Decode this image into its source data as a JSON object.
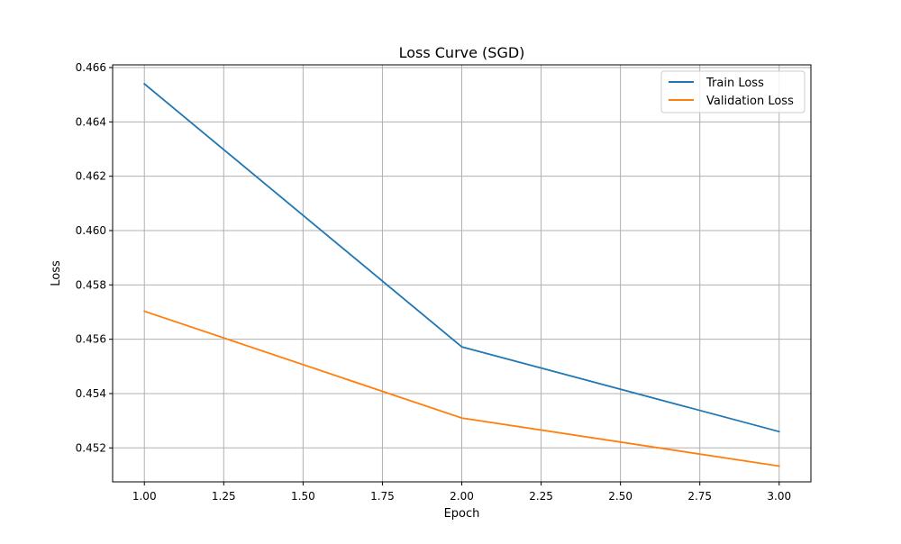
{
  "chart_data": {
    "type": "line",
    "title": "Loss Curve (SGD)",
    "xlabel": "Epoch",
    "ylabel": "Loss",
    "xlim": [
      0.9,
      3.1
    ],
    "ylim": [
      0.45075,
      0.4661
    ],
    "x_ticks": [
      1.0,
      1.25,
      1.5,
      1.75,
      2.0,
      2.25,
      2.5,
      2.75,
      3.0
    ],
    "x_tick_labels": [
      "1.00",
      "1.25",
      "1.50",
      "1.75",
      "2.00",
      "2.25",
      "2.50",
      "2.75",
      "3.00"
    ],
    "y_ticks": [
      0.452,
      0.454,
      0.456,
      0.458,
      0.46,
      0.462,
      0.464,
      0.466
    ],
    "y_tick_labels": [
      "0.452",
      "0.454",
      "0.456",
      "0.458",
      "0.460",
      "0.462",
      "0.464",
      "0.466"
    ],
    "grid": true,
    "legend_position": "top-right",
    "x": [
      1,
      2,
      3
    ],
    "series": [
      {
        "name": "Train Loss",
        "color": "#1f77b4",
        "values": [
          0.4654,
          0.45572,
          0.4526
        ]
      },
      {
        "name": "Validation Loss",
        "color": "#ff7f0e",
        "values": [
          0.45703,
          0.4531,
          0.45133
        ]
      }
    ]
  }
}
